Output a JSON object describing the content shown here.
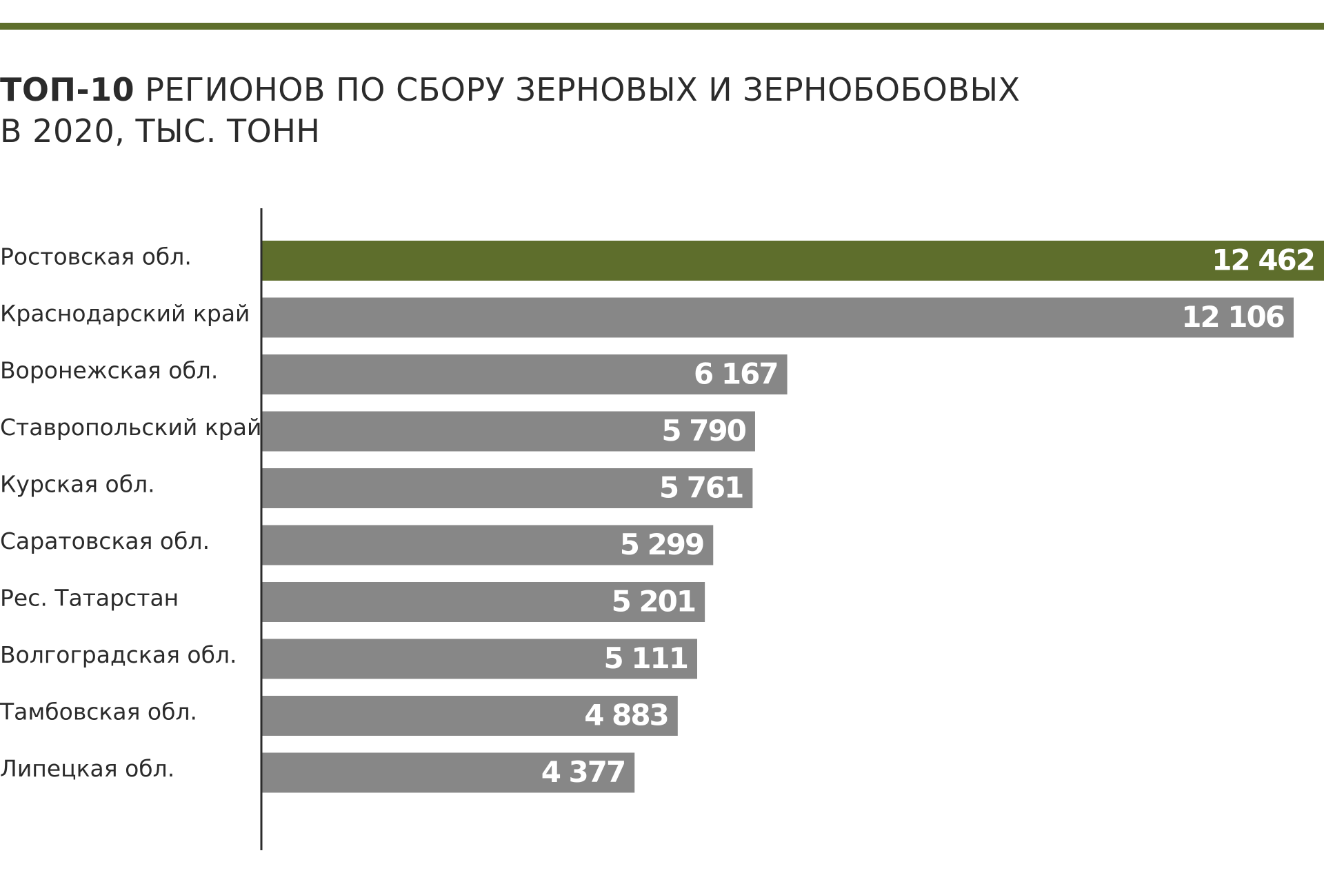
{
  "title": {
    "bold_part": "ТОП-10",
    "rest_line1": " РЕГИОНОВ ПО СБОРУ ЗЕРНОВЫХ И ЗЕРНОБОБОВЫХ",
    "line2": "В 2020, ТЫС. ТОНН"
  },
  "colors": {
    "accent": "#5e6e2c",
    "bar": "#878787",
    "axis": "#2b2b2b"
  },
  "chart_data": {
    "type": "bar",
    "orientation": "horizontal",
    "title": "ТОП-10 РЕГИОНОВ ПО СБОРУ ЗЕРНОВЫХ И ЗЕРНОБОБОВЫХ В 2020, ТЫС. ТОНН",
    "categories": [
      "Ростовская обл.",
      "Краснодарский край",
      "Воронежская обл.",
      "Ставропольский край",
      "Курская обл.",
      "Саратовская обл.",
      "Рес. Татарстан",
      "Волгоградская обл.",
      "Тамбовская обл.",
      "Липецкая обл."
    ],
    "values": [
      12462,
      12106,
      6167,
      5790,
      5761,
      5299,
      5201,
      5111,
      4883,
      4377
    ],
    "value_labels": [
      "12 462",
      "12 106",
      "6 167",
      "5 790",
      "5 761",
      "5 299",
      "5 201",
      "5 111",
      "4 883",
      "4 377"
    ],
    "highlight_index": 0,
    "xlim": [
      0,
      12462
    ],
    "grid": false,
    "legend": "none"
  }
}
